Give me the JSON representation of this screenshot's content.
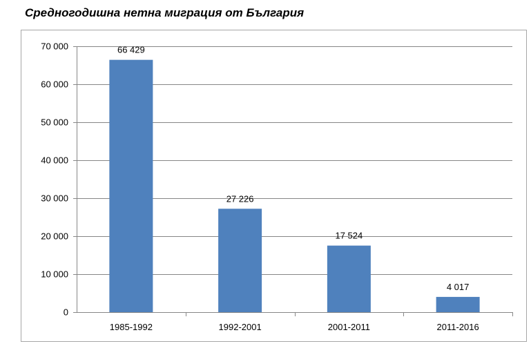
{
  "chart_data": {
    "type": "bar",
    "title": "Средногодишна нетна миграция от България",
    "categories": [
      "1985-1992",
      "1992-2001",
      "2001-2011",
      "2011-2016"
    ],
    "values": [
      66429,
      27226,
      17524,
      4017
    ],
    "value_labels": [
      "66 429",
      "27 226",
      "17 524",
      "4 017"
    ],
    "yticks": [
      "0",
      "10 000",
      "20 000",
      "30 000",
      "40 000",
      "50 000",
      "60 000",
      "70 000"
    ],
    "ylim": [
      0,
      70000
    ],
    "xlabel": "",
    "ylabel": "",
    "grid": true,
    "bar_color": "#4f81bd",
    "grid_color": "#868686"
  }
}
